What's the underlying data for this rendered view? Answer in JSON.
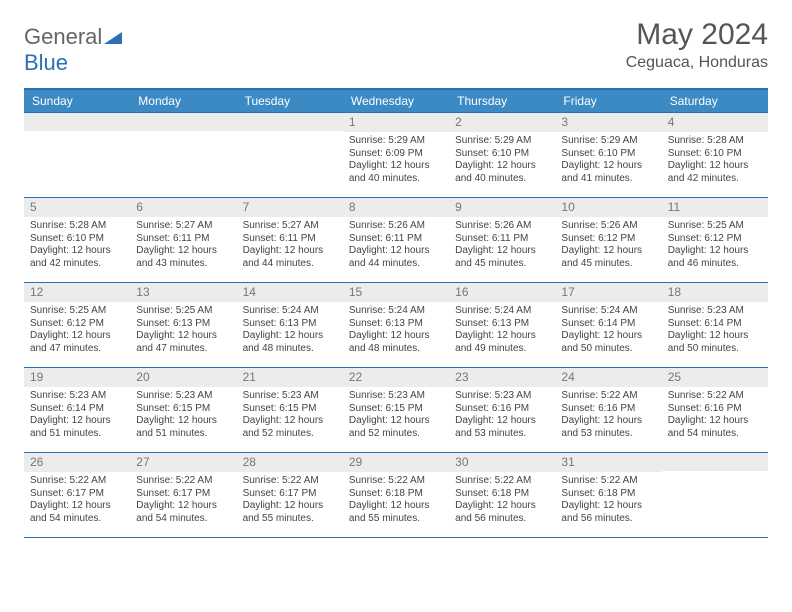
{
  "brand": {
    "part1": "General",
    "part2": "Blue"
  },
  "title": "May 2024",
  "location": "Ceguaca, Honduras",
  "colors": {
    "header_bg": "#3b8ac4",
    "border": "#2b6fb5",
    "daynum_bg": "#ececec",
    "text": "#444444",
    "title_text": "#555555"
  },
  "day_headers": [
    "Sunday",
    "Monday",
    "Tuesday",
    "Wednesday",
    "Thursday",
    "Friday",
    "Saturday"
  ],
  "weeks": [
    [
      {
        "n": "",
        "sr": "",
        "ss": "",
        "dl": ""
      },
      {
        "n": "",
        "sr": "",
        "ss": "",
        "dl": ""
      },
      {
        "n": "",
        "sr": "",
        "ss": "",
        "dl": ""
      },
      {
        "n": "1",
        "sr": "Sunrise: 5:29 AM",
        "ss": "Sunset: 6:09 PM",
        "dl": "Daylight: 12 hours and 40 minutes."
      },
      {
        "n": "2",
        "sr": "Sunrise: 5:29 AM",
        "ss": "Sunset: 6:10 PM",
        "dl": "Daylight: 12 hours and 40 minutes."
      },
      {
        "n": "3",
        "sr": "Sunrise: 5:29 AM",
        "ss": "Sunset: 6:10 PM",
        "dl": "Daylight: 12 hours and 41 minutes."
      },
      {
        "n": "4",
        "sr": "Sunrise: 5:28 AM",
        "ss": "Sunset: 6:10 PM",
        "dl": "Daylight: 12 hours and 42 minutes."
      }
    ],
    [
      {
        "n": "5",
        "sr": "Sunrise: 5:28 AM",
        "ss": "Sunset: 6:10 PM",
        "dl": "Daylight: 12 hours and 42 minutes."
      },
      {
        "n": "6",
        "sr": "Sunrise: 5:27 AM",
        "ss": "Sunset: 6:11 PM",
        "dl": "Daylight: 12 hours and 43 minutes."
      },
      {
        "n": "7",
        "sr": "Sunrise: 5:27 AM",
        "ss": "Sunset: 6:11 PM",
        "dl": "Daylight: 12 hours and 44 minutes."
      },
      {
        "n": "8",
        "sr": "Sunrise: 5:26 AM",
        "ss": "Sunset: 6:11 PM",
        "dl": "Daylight: 12 hours and 44 minutes."
      },
      {
        "n": "9",
        "sr": "Sunrise: 5:26 AM",
        "ss": "Sunset: 6:11 PM",
        "dl": "Daylight: 12 hours and 45 minutes."
      },
      {
        "n": "10",
        "sr": "Sunrise: 5:26 AM",
        "ss": "Sunset: 6:12 PM",
        "dl": "Daylight: 12 hours and 45 minutes."
      },
      {
        "n": "11",
        "sr": "Sunrise: 5:25 AM",
        "ss": "Sunset: 6:12 PM",
        "dl": "Daylight: 12 hours and 46 minutes."
      }
    ],
    [
      {
        "n": "12",
        "sr": "Sunrise: 5:25 AM",
        "ss": "Sunset: 6:12 PM",
        "dl": "Daylight: 12 hours and 47 minutes."
      },
      {
        "n": "13",
        "sr": "Sunrise: 5:25 AM",
        "ss": "Sunset: 6:13 PM",
        "dl": "Daylight: 12 hours and 47 minutes."
      },
      {
        "n": "14",
        "sr": "Sunrise: 5:24 AM",
        "ss": "Sunset: 6:13 PM",
        "dl": "Daylight: 12 hours and 48 minutes."
      },
      {
        "n": "15",
        "sr": "Sunrise: 5:24 AM",
        "ss": "Sunset: 6:13 PM",
        "dl": "Daylight: 12 hours and 48 minutes."
      },
      {
        "n": "16",
        "sr": "Sunrise: 5:24 AM",
        "ss": "Sunset: 6:13 PM",
        "dl": "Daylight: 12 hours and 49 minutes."
      },
      {
        "n": "17",
        "sr": "Sunrise: 5:24 AM",
        "ss": "Sunset: 6:14 PM",
        "dl": "Daylight: 12 hours and 50 minutes."
      },
      {
        "n": "18",
        "sr": "Sunrise: 5:23 AM",
        "ss": "Sunset: 6:14 PM",
        "dl": "Daylight: 12 hours and 50 minutes."
      }
    ],
    [
      {
        "n": "19",
        "sr": "Sunrise: 5:23 AM",
        "ss": "Sunset: 6:14 PM",
        "dl": "Daylight: 12 hours and 51 minutes."
      },
      {
        "n": "20",
        "sr": "Sunrise: 5:23 AM",
        "ss": "Sunset: 6:15 PM",
        "dl": "Daylight: 12 hours and 51 minutes."
      },
      {
        "n": "21",
        "sr": "Sunrise: 5:23 AM",
        "ss": "Sunset: 6:15 PM",
        "dl": "Daylight: 12 hours and 52 minutes."
      },
      {
        "n": "22",
        "sr": "Sunrise: 5:23 AM",
        "ss": "Sunset: 6:15 PM",
        "dl": "Daylight: 12 hours and 52 minutes."
      },
      {
        "n": "23",
        "sr": "Sunrise: 5:23 AM",
        "ss": "Sunset: 6:16 PM",
        "dl": "Daylight: 12 hours and 53 minutes."
      },
      {
        "n": "24",
        "sr": "Sunrise: 5:22 AM",
        "ss": "Sunset: 6:16 PM",
        "dl": "Daylight: 12 hours and 53 minutes."
      },
      {
        "n": "25",
        "sr": "Sunrise: 5:22 AM",
        "ss": "Sunset: 6:16 PM",
        "dl": "Daylight: 12 hours and 54 minutes."
      }
    ],
    [
      {
        "n": "26",
        "sr": "Sunrise: 5:22 AM",
        "ss": "Sunset: 6:17 PM",
        "dl": "Daylight: 12 hours and 54 minutes."
      },
      {
        "n": "27",
        "sr": "Sunrise: 5:22 AM",
        "ss": "Sunset: 6:17 PM",
        "dl": "Daylight: 12 hours and 54 minutes."
      },
      {
        "n": "28",
        "sr": "Sunrise: 5:22 AM",
        "ss": "Sunset: 6:17 PM",
        "dl": "Daylight: 12 hours and 55 minutes."
      },
      {
        "n": "29",
        "sr": "Sunrise: 5:22 AM",
        "ss": "Sunset: 6:18 PM",
        "dl": "Daylight: 12 hours and 55 minutes."
      },
      {
        "n": "30",
        "sr": "Sunrise: 5:22 AM",
        "ss": "Sunset: 6:18 PM",
        "dl": "Daylight: 12 hours and 56 minutes."
      },
      {
        "n": "31",
        "sr": "Sunrise: 5:22 AM",
        "ss": "Sunset: 6:18 PM",
        "dl": "Daylight: 12 hours and 56 minutes."
      },
      {
        "n": "",
        "sr": "",
        "ss": "",
        "dl": ""
      }
    ]
  ]
}
